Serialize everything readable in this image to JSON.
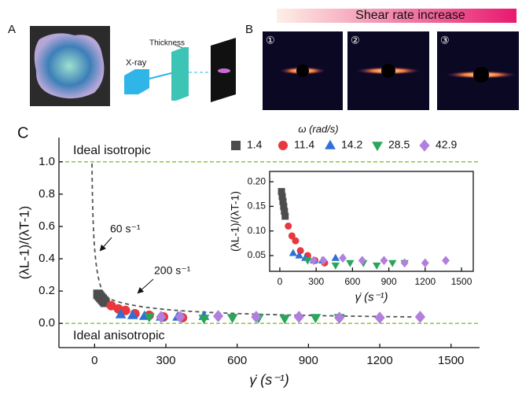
{
  "panels": {
    "a": {
      "label": "A",
      "thickness": "Thickness",
      "xray": "X-ray"
    },
    "b": {
      "label": "B",
      "gradient": "Shear rate increase",
      "images": [
        "①",
        "②",
        "③"
      ]
    }
  },
  "chart_data": [
    {
      "type": "scatter",
      "panel": "C",
      "x_label": "γ̇ (s⁻¹)",
      "y_label": "(λL-1)/(λT-1)",
      "legend_title": "ω (rad/s)",
      "legend": "top-right",
      "xlim": [
        -150,
        1620
      ],
      "ylim": [
        -0.15,
        1.15
      ],
      "xticks": [
        0,
        300,
        600,
        900,
        1200,
        1500
      ],
      "yticks": [
        {
          "value": 0,
          "label": "0.0"
        },
        0.2,
        0.4,
        0.6,
        0.8,
        {
          "value": 1,
          "label": "1.0"
        }
      ],
      "grid": false,
      "reference_lines": [
        {
          "value": 1,
          "label": "Ideal isotropic"
        },
        {
          "value": 0,
          "label": "Ideal anisotropic"
        }
      ],
      "reference_color": "#8cc63f",
      "annotations": [
        "60 s⁻¹",
        "200 s⁻¹"
      ],
      "series": [
        {
          "name": "1.4",
          "marker": "square",
          "color": "#4d4d4d",
          "x": [
            14,
            20,
            26,
            32,
            38,
            44
          ],
          "values": [
            0.18,
            0.17,
            0.16,
            0.15,
            0.14,
            0.13
          ]
        },
        {
          "name": "11.4",
          "marker": "circle",
          "color": "#e8383d",
          "x": [
            70,
            100,
            130,
            170,
            230,
            290,
            370
          ],
          "values": [
            0.11,
            0.09,
            0.08,
            0.06,
            0.05,
            0.04,
            0.035
          ]
        },
        {
          "name": "14.2",
          "marker": "triangle-up",
          "color": "#2f6fd6",
          "x": [
            110,
            160,
            210,
            280,
            350,
            460
          ],
          "values": [
            0.055,
            0.05,
            0.045,
            0.04,
            0.04,
            0.045
          ]
        },
        {
          "name": "28.5",
          "marker": "triangle-down",
          "color": "#2aa55a",
          "x": [
            230,
            460,
            580,
            690,
            800,
            930,
            1030
          ],
          "values": [
            0.04,
            0.03,
            0.035,
            0.035,
            0.03,
            0.035,
            0.035
          ]
        },
        {
          "name": "42.9",
          "marker": "diamond",
          "color": "#b27fdd",
          "x": [
            280,
            360,
            520,
            680,
            860,
            1030,
            1200,
            1370
          ],
          "values": [
            0.04,
            0.04,
            0.045,
            0.04,
            0.04,
            0.035,
            0.035,
            0.04
          ]
        }
      ]
    },
    {
      "type": "scatter",
      "x_label": "γ̇ (s⁻¹)",
      "y_label": "(λL-1)/(λT-1)",
      "xlim": [
        -84,
        1597
      ],
      "ylim": [
        0.018,
        0.221
      ],
      "xticks": [
        0,
        300,
        600,
        900,
        1200,
        1500
      ],
      "yticks": [
        0.05,
        {
          "value": 0.1,
          "label": "0.10"
        },
        0.15,
        {
          "value": 0.2,
          "label": "0.20"
        }
      ],
      "grid": false,
      "series": [
        {
          "marker": "square",
          "color": "#4d4d4d",
          "x": [
            14,
            20,
            26,
            32,
            38,
            44
          ],
          "values": [
            0.18,
            0.17,
            0.16,
            0.15,
            0.14,
            0.13
          ]
        },
        {
          "marker": "circle",
          "color": "#e8383d",
          "x": [
            70,
            100,
            130,
            170,
            230,
            290,
            370
          ],
          "values": [
            0.11,
            0.09,
            0.08,
            0.06,
            0.05,
            0.04,
            0.035
          ]
        },
        {
          "marker": "triangle-up",
          "color": "#2f6fd6",
          "x": [
            110,
            160,
            210,
            280,
            350,
            460
          ],
          "values": [
            0.055,
            0.05,
            0.045,
            0.04,
            0.04,
            0.045
          ]
        },
        {
          "marker": "triangle-down",
          "color": "#2aa55a",
          "x": [
            230,
            460,
            580,
            690,
            800,
            930,
            1030
          ],
          "values": [
            0.04,
            0.03,
            0.035,
            0.035,
            0.03,
            0.035,
            0.035
          ]
        },
        {
          "marker": "diamond",
          "color": "#b27fdd",
          "x": [
            280,
            360,
            520,
            680,
            860,
            1030,
            1200,
            1370
          ],
          "values": [
            0.04,
            0.04,
            0.045,
            0.04,
            0.04,
            0.035,
            0.035,
            0.04
          ]
        }
      ]
    }
  ]
}
